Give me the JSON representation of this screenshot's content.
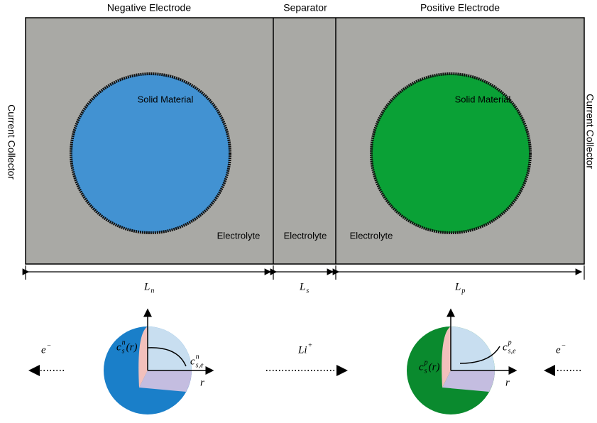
{
  "headers": {
    "negative": "Negative Electrode",
    "separator": "Separator",
    "positive": "Positive Electrode"
  },
  "collectors": {
    "left": "Current Collector",
    "right": "Current Collector"
  },
  "particles": {
    "negative": "Solid Material",
    "positive": "Solid Material"
  },
  "electrolyte": {
    "negative": "Electrolyte",
    "separator": "Electrolyte",
    "positive": "Electrolyte"
  },
  "lengths": {
    "negative": {
      "base": "L",
      "sub": "n"
    },
    "separator": {
      "base": "L",
      "sub": "s"
    },
    "positive": {
      "base": "L",
      "sub": "p"
    }
  },
  "carriers": {
    "electron_left": {
      "base": "e",
      "sup": "−"
    },
    "ion": {
      "base": "Li",
      "sup": "+"
    },
    "electron_right": {
      "base": "e",
      "sup": "−"
    }
  },
  "spheres": {
    "negative": {
      "profile": {
        "base": "c",
        "sup": "n",
        "sub": "s",
        "arg": "(r)"
      },
      "surface": {
        "base": "c",
        "sup": "n",
        "sub": "s,e"
      },
      "axis": "r"
    },
    "positive": {
      "profile": {
        "base": "c",
        "sup": "p",
        "sub": "s",
        "arg": "(r)"
      },
      "surface": {
        "base": "c",
        "sup": "p",
        "sub": "s,e"
      },
      "axis": "r"
    }
  }
}
